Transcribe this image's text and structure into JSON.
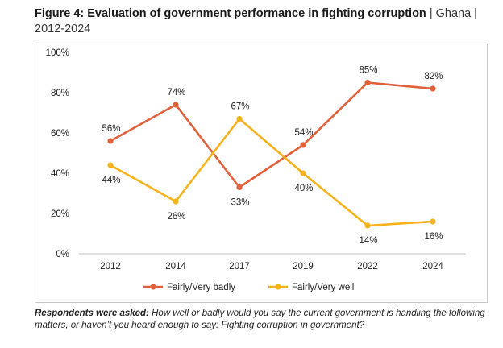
{
  "title": {
    "main": "Figure 4: Evaluation of government performance in fighting corruption",
    "sub": "| Ghana | 2012-2024"
  },
  "note": {
    "label": "Respondents were asked:",
    "text": "How well or badly would you say the current government is handling the following matters, or haven’t you heard enough to say: Fighting corruption in government?"
  },
  "chart_data": {
    "type": "line",
    "x": [
      "2012",
      "2014",
      "2017",
      "2019",
      "2022",
      "2024"
    ],
    "ylim": [
      0,
      100
    ],
    "yticks": [
      "0%",
      "20%",
      "40%",
      "60%",
      "80%",
      "100%"
    ],
    "grid": false,
    "legend_position": "bottom",
    "series": [
      {
        "name": "Fairly/Very badly",
        "color": "#e0603a",
        "values": [
          56,
          74,
          33,
          54,
          85,
          82
        ],
        "labels": [
          "56%",
          "74%",
          "33%",
          "54%",
          "85%",
          "82%"
        ]
      },
      {
        "name": "Fairly/Very well",
        "color": "#f5b21b",
        "values": [
          44,
          26,
          67,
          40,
          14,
          16
        ],
        "labels": [
          "44%",
          "26%",
          "67%",
          "40%",
          "14%",
          "16%"
        ]
      }
    ]
  }
}
